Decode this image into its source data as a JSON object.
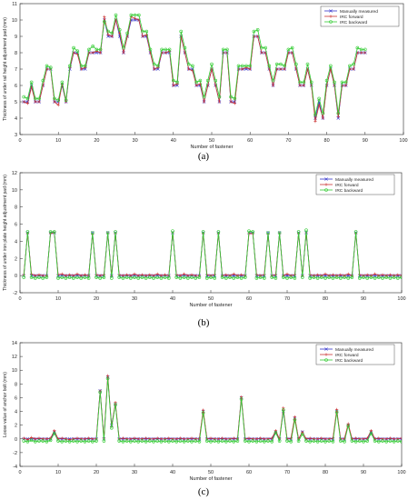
{
  "chart_data": [
    {
      "type": "line",
      "caption": "(a)",
      "xlabel": "Number of fastener",
      "ylabel": "Thickness of under rail height adjustment pad (mm)",
      "xlim": [
        0,
        100
      ],
      "ylim": [
        3,
        11
      ],
      "xticks": [
        0,
        10,
        20,
        30,
        40,
        50,
        60,
        70,
        80,
        90,
        100
      ],
      "yticks": [
        3,
        4,
        5,
        6,
        7,
        8,
        9,
        10,
        11
      ],
      "grid": false,
      "legend_position": "top-right",
      "x_start": 1,
      "series": [
        {
          "name": "Manually measured",
          "color": "#3333cc",
          "marker": "x",
          "values": [
            5,
            5,
            6,
            5,
            5,
            6,
            7,
            7,
            5,
            5,
            6,
            5,
            7,
            8,
            8,
            7,
            7,
            8,
            8,
            8,
            8,
            10,
            9,
            9,
            10,
            9,
            8,
            9,
            10,
            10,
            10,
            9,
            9,
            8,
            7,
            7,
            8,
            8,
            8,
            6,
            6,
            9,
            8,
            7,
            7,
            6,
            6,
            5,
            6,
            7,
            6,
            5,
            8,
            8,
            5,
            5,
            7,
            7,
            7,
            7,
            9,
            9,
            8,
            8,
            7,
            6,
            7,
            7,
            7,
            8,
            8,
            7,
            6,
            6,
            7,
            6,
            4,
            5,
            4,
            6,
            7,
            6,
            4,
            6,
            6,
            7,
            7,
            8,
            8,
            8
          ]
        },
        {
          "name": "IRC forward",
          "color": "#cc3333",
          "marker": "+",
          "values": [
            5,
            4.9,
            5.9,
            5,
            5,
            6,
            7,
            7,
            5,
            4.8,
            6.1,
            5,
            7.1,
            8,
            7.9,
            7,
            7.1,
            8,
            8,
            8.1,
            8,
            10.2,
            9.1,
            9,
            10,
            9.2,
            8,
            9,
            10.2,
            10.1,
            10,
            9,
            9.1,
            8,
            7,
            7.1,
            8,
            8,
            8.1,
            6,
            6.1,
            9,
            8,
            7,
            6.9,
            6,
            6.1,
            5,
            6,
            7,
            6,
            5,
            8,
            8,
            5,
            4.9,
            7,
            7,
            7.1,
            7,
            9,
            9,
            8,
            8,
            7,
            6,
            7,
            7,
            7,
            8,
            8,
            7,
            6,
            6,
            7,
            6,
            3.8,
            4.8,
            4,
            6,
            7,
            6,
            4.1,
            6,
            6,
            7,
            7,
            8,
            8,
            8
          ]
        },
        {
          "name": "IRC backward",
          "color": "#33cc33",
          "marker": "o",
          "values": [
            5.3,
            5.2,
            6.2,
            5.2,
            5.2,
            6.3,
            7.2,
            7.1,
            5.2,
            5.1,
            6.2,
            5.1,
            7.2,
            8.3,
            8.1,
            7.2,
            7.2,
            8.2,
            8.4,
            8.2,
            8.2,
            9.9,
            9.3,
            9.2,
            10.3,
            9.4,
            8.3,
            9.2,
            10.3,
            10.3,
            10.3,
            9.3,
            9.3,
            8.2,
            7.3,
            7.2,
            8.2,
            8.2,
            8.2,
            6.3,
            6.2,
            9.3,
            8.3,
            7.3,
            7.2,
            6.2,
            6.3,
            5.3,
            6.3,
            7.3,
            6.3,
            5.3,
            8.2,
            8.2,
            5.3,
            5.2,
            7.2,
            7.2,
            7.2,
            7.2,
            9.3,
            9.4,
            8.3,
            8.3,
            7.2,
            6.3,
            7.3,
            7.3,
            7.2,
            8.2,
            8.3,
            7.3,
            6.2,
            6.2,
            7.3,
            6.2,
            4.2,
            5.2,
            4.3,
            6.3,
            7.2,
            6.2,
            4.3,
            6.2,
            6.2,
            7.2,
            7.3,
            8.3,
            8.2,
            8.2
          ]
        }
      ]
    },
    {
      "type": "line",
      "caption": "(b)",
      "xlabel": "Number of fastener",
      "ylabel": "Thickness of under iron plate height adjustment pad (mm)",
      "xlim": [
        0,
        100
      ],
      "ylim": [
        -2,
        12
      ],
      "xticks": [
        0,
        10,
        20,
        30,
        40,
        50,
        60,
        70,
        80,
        90,
        100
      ],
      "yticks": [
        -2,
        0,
        2,
        4,
        6,
        8,
        10,
        12
      ],
      "grid": false,
      "legend_position": "top-right",
      "x_start": 1,
      "series": [
        {
          "name": "Manually measured",
          "color": "#3333cc",
          "marker": "x",
          "values": [
            0,
            5,
            0,
            0,
            0,
            0,
            0,
            5,
            5,
            0,
            0,
            0,
            0,
            0,
            0,
            0,
            0,
            0,
            5,
            0,
            0,
            0,
            5,
            0,
            5,
            0,
            0,
            0,
            0,
            0,
            0,
            0,
            0,
            0,
            0,
            0,
            0,
            0,
            0,
            5,
            0,
            0,
            0,
            0,
            0,
            0,
            0,
            5,
            0,
            0,
            0,
            5,
            0,
            0,
            0,
            0,
            0,
            0,
            0,
            5,
            5,
            0,
            0,
            0,
            5,
            0,
            0,
            5,
            0,
            0,
            0,
            0,
            5,
            0,
            5,
            0,
            0,
            0,
            0,
            0,
            0,
            0,
            0,
            0,
            0,
            0,
            0,
            5,
            0,
            0,
            0,
            0,
            0,
            0,
            0,
            0,
            0,
            0,
            0,
            0
          ]
        },
        {
          "name": "IRC forward",
          "color": "#cc3333",
          "marker": "+",
          "values": [
            0.1,
            4.9,
            0.2,
            0,
            0.1,
            0,
            0,
            4.9,
            5,
            0.1,
            0.2,
            0,
            0.1,
            0,
            0.2,
            0,
            0.1,
            0,
            4.8,
            0.1,
            0,
            0.1,
            4.9,
            0,
            4.9,
            0.1,
            0,
            0.1,
            0,
            0.2,
            0,
            0.1,
            0,
            0.1,
            0,
            0.2,
            0,
            0.1,
            0,
            5,
            0.1,
            0,
            0.2,
            0,
            0.1,
            0,
            0,
            4.9,
            0.1,
            0,
            0.1,
            4.9,
            0,
            0.1,
            0,
            0.2,
            0,
            0.1,
            0,
            4.9,
            4.9,
            0.1,
            0,
            0.1,
            4.8,
            0,
            0.1,
            4.9,
            0,
            0.2,
            0,
            0.1,
            4.9,
            0,
            5,
            0.1,
            0,
            0.1,
            0,
            0.2,
            0,
            0.1,
            0,
            0.1,
            0,
            0.2,
            0,
            4.9,
            0.1,
            0,
            0.1,
            0,
            0.2,
            0,
            0.1,
            0,
            0.1,
            0,
            0.1,
            0
          ]
        },
        {
          "name": "IRC backward",
          "color": "#33cc33",
          "marker": "o",
          "values": [
            -0.2,
            5.1,
            -0.2,
            -0.3,
            -0.2,
            -0.3,
            -0.2,
            5.1,
            5.1,
            -0.3,
            -0.2,
            -0.3,
            -0.2,
            -0.3,
            -0.2,
            -0.3,
            -0.2,
            -0.3,
            5,
            -0.2,
            -0.3,
            -0.2,
            5,
            -0.3,
            5.1,
            -0.2,
            -0.3,
            -0.2,
            -0.3,
            -0.2,
            -0.3,
            -0.2,
            -0.3,
            -0.2,
            -0.3,
            -0.2,
            -0.3,
            -0.2,
            -0.3,
            5.2,
            -0.2,
            -0.3,
            -0.2,
            -0.3,
            -0.2,
            -0.3,
            -0.2,
            5.1,
            -0.3,
            -0.2,
            -0.3,
            5.1,
            -0.2,
            -0.3,
            -0.2,
            -0.3,
            -0.2,
            -0.3,
            -0.2,
            5.2,
            5.1,
            -0.3,
            -0.2,
            -0.3,
            5,
            -0.2,
            -0.3,
            5,
            -0.2,
            -0.3,
            -0.2,
            -0.3,
            5.1,
            -0.2,
            5.3,
            -0.3,
            -0.2,
            -0.3,
            -0.2,
            -0.3,
            -0.2,
            -0.3,
            -0.2,
            -0.3,
            -0.2,
            -0.3,
            -0.2,
            5.1,
            -0.3,
            -0.2,
            -0.3,
            -0.2,
            -0.3,
            -0.2,
            -0.3,
            -0.2,
            -0.3,
            -0.2,
            -0.3,
            -0.2
          ]
        }
      ]
    },
    {
      "type": "line",
      "caption": "(c)",
      "xlabel": "Number of fastener",
      "ylabel": "Loose value of anchor bolt (mm)",
      "xlim": [
        0,
        100
      ],
      "ylim": [
        -4,
        14
      ],
      "xticks": [
        0,
        10,
        20,
        30,
        40,
        50,
        60,
        70,
        80,
        90,
        100
      ],
      "yticks": [
        -4,
        -2,
        0,
        2,
        4,
        6,
        8,
        10,
        12,
        14
      ],
      "grid": false,
      "legend_position": "top-right",
      "x_start": 1,
      "series": [
        {
          "name": "Manually measured",
          "color": "#3333cc",
          "marker": "x",
          "values": [
            0,
            0,
            0,
            0,
            0,
            0,
            0,
            0,
            1,
            0,
            0,
            0,
            0,
            0,
            0,
            0,
            0,
            0,
            0,
            0,
            7,
            0,
            9,
            2,
            5,
            0,
            0,
            0,
            0,
            0,
            0,
            0,
            0,
            0,
            0,
            0,
            0,
            0,
            0,
            0,
            0,
            0,
            0,
            0,
            0,
            0,
            0,
            4,
            0,
            0,
            0,
            0,
            0,
            0,
            0,
            0,
            0,
            6,
            0,
            0,
            0,
            0,
            0,
            0,
            0,
            0,
            1,
            0,
            4,
            0,
            0,
            3,
            0,
            1,
            0,
            0,
            0,
            0,
            0,
            0,
            0,
            0,
            4,
            0,
            0,
            2,
            0,
            0,
            0,
            0,
            0,
            1,
            0,
            0,
            0,
            0,
            0,
            0,
            0,
            0
          ]
        },
        {
          "name": "IRC forward",
          "color": "#cc3333",
          "marker": "+",
          "values": [
            0.1,
            -0.1,
            0.2,
            0,
            0.1,
            0,
            0,
            0.1,
            1.2,
            0,
            0.1,
            0,
            -0.1,
            0,
            0.1,
            0,
            0,
            0.1,
            0,
            0,
            7,
            0.1,
            9.2,
            1.8,
            5.3,
            0,
            0.1,
            0,
            0,
            0.1,
            0,
            0,
            0.1,
            0,
            0,
            0.1,
            0,
            0,
            0.1,
            0,
            0,
            0.1,
            0,
            0,
            0.1,
            0,
            0,
            4.2,
            0,
            0.1,
            0,
            0,
            0.1,
            0,
            0,
            0.1,
            0,
            6.1,
            0,
            0.1,
            0,
            0,
            0.1,
            0,
            0,
            0.1,
            1.2,
            0,
            4.5,
            0,
            0.1,
            3.2,
            0,
            1,
            0,
            0.1,
            0,
            0,
            0.1,
            0,
            0,
            0.1,
            4.3,
            0,
            0,
            2.2,
            0,
            0.1,
            0,
            0,
            0.1,
            1.2,
            0,
            0.1,
            0,
            0,
            0.1,
            0,
            0,
            0.1
          ]
        },
        {
          "name": "IRC backward",
          "color": "#33cc33",
          "marker": "o",
          "values": [
            -0.3,
            -0.4,
            -0.2,
            -0.4,
            -0.3,
            -0.3,
            -0.4,
            -0.2,
            0.8,
            -0.3,
            -0.4,
            -0.3,
            -0.4,
            -0.3,
            -0.4,
            -0.3,
            -0.4,
            -0.3,
            -0.4,
            -0.3,
            6.8,
            -0.3,
            8.8,
            1.6,
            5,
            -0.3,
            -0.4,
            -0.3,
            -0.4,
            -0.3,
            -0.4,
            -0.3,
            -0.4,
            -0.3,
            -0.4,
            -0.3,
            -0.4,
            -0.3,
            -0.4,
            -0.3,
            -0.4,
            -0.3,
            -0.4,
            -0.3,
            -0.4,
            -0.3,
            -0.4,
            3.8,
            -0.3,
            -0.4,
            -0.3,
            -0.4,
            -0.3,
            -0.4,
            -0.3,
            -0.4,
            -0.3,
            5.8,
            -0.3,
            -0.4,
            -0.3,
            -0.4,
            -0.3,
            -0.4,
            -0.3,
            -0.4,
            0.9,
            -0.3,
            4.2,
            -0.3,
            -0.4,
            2.8,
            -0.3,
            0.7,
            -0.3,
            -0.4,
            -0.3,
            -0.4,
            -0.3,
            -0.4,
            -0.3,
            -0.4,
            3.9,
            -0.3,
            -0.4,
            1.9,
            -0.3,
            -0.4,
            -0.3,
            -0.4,
            -0.3,
            0.8,
            -0.3,
            -0.4,
            -0.3,
            -0.4,
            -0.3,
            -0.4,
            -0.3,
            -0.4
          ]
        }
      ]
    }
  ]
}
